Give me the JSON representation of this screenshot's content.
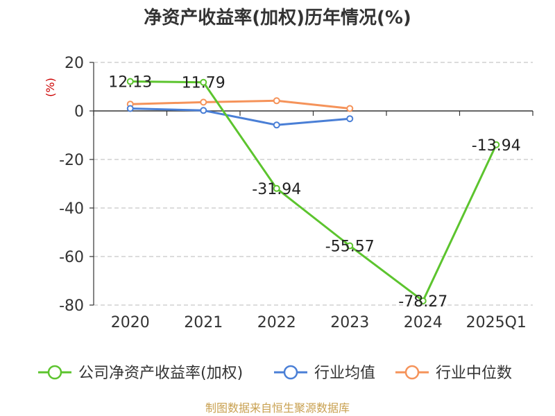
{
  "chart_data": {
    "type": "line",
    "title": "净资产收益率(加权)历年情况(%)",
    "ylabel": "(%)",
    "categories": [
      "2020",
      "2021",
      "2022",
      "2023",
      "2024",
      "2025Q1"
    ],
    "ylim": [
      -80,
      20
    ],
    "yticks": [
      20,
      0,
      -20,
      -40,
      -60,
      -80
    ],
    "grid": true,
    "legend_position": "bottom",
    "series": [
      {
        "name": "公司净资产收益率(加权)",
        "color": "#5cc42e",
        "values": [
          12.13,
          11.79,
          -31.94,
          -55.57,
          -78.27,
          -13.94
        ],
        "labels": [
          "12.13",
          "11.79",
          "-31.94",
          "-55.57",
          "-78.27",
          "-13.94"
        ]
      },
      {
        "name": "行业均值",
        "color": "#4a7fd6",
        "values": [
          1.0,
          0.2,
          -5.8,
          -3.2,
          null,
          null
        ]
      },
      {
        "name": "行业中位数",
        "color": "#f5935a",
        "values": [
          2.8,
          3.6,
          4.2,
          1.0,
          null,
          null
        ]
      }
    ]
  },
  "footer": {
    "source": "制图数据来自恒生聚源数据库"
  }
}
